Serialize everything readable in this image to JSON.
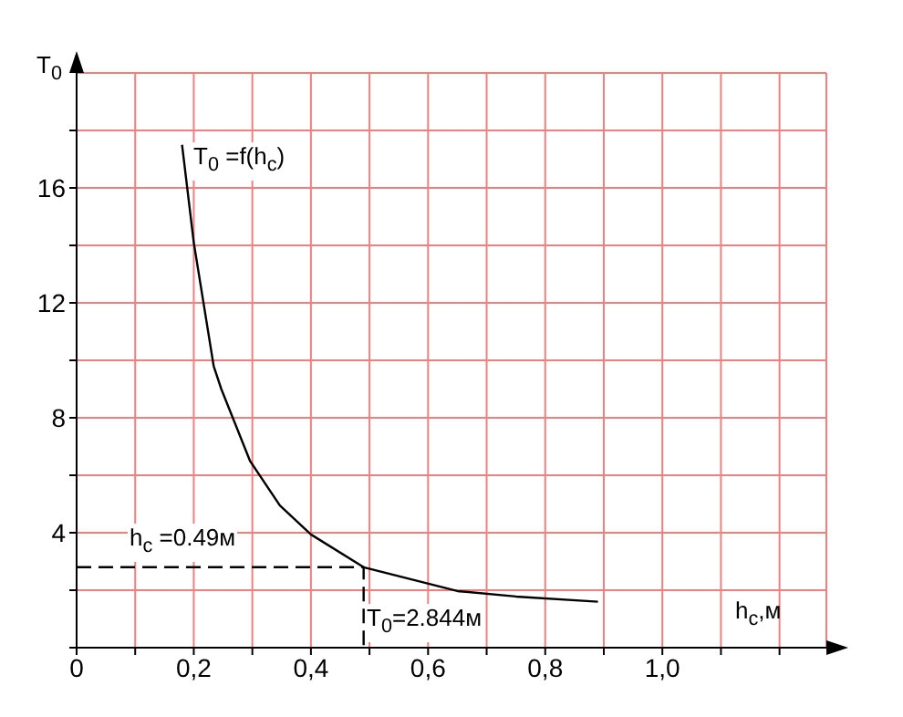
{
  "chart_data": {
    "type": "line",
    "xlabel": "h$_{c}$,м",
    "ylabel": "T$_{0}$",
    "annotations": [
      "T$_{0}$ =f(h$_{c}$)",
      "h$_{c}$ =0.49м",
      "T$_{0}$=2.844м"
    ],
    "series": [
      {
        "color": "#000000",
        "line_style": "solid",
        "x": [
          0.18,
          0.2,
          0.234,
          0.247,
          0.296,
          0.347,
          0.4,
          0.49,
          0.65,
          0.75,
          0.89
        ],
        "values": [
          17.5,
          14.1,
          9.8,
          9.0,
          6.5,
          4.95,
          3.94,
          2.8,
          1.97,
          1.78,
          1.6
        ]
      },
      {
        "color": "#000000",
        "line_style": "dashed",
        "x": [
          0,
          0.49,
          0.49
        ],
        "values": [
          2.8,
          2.8,
          0
        ]
      }
    ],
    "xlim": [
      0,
      1.28
    ],
    "ylim": [
      0,
      20
    ],
    "xticks": [
      {
        "value": 0,
        "label": "0"
      },
      {
        "value": 0.1,
        "label": null
      },
      {
        "value": 0.2,
        "label": "0,2"
      },
      {
        "value": 0.3,
        "label": null
      },
      {
        "value": 0.4,
        "label": "0,4"
      },
      {
        "value": 0.5,
        "label": null
      },
      {
        "value": 0.6,
        "label": "0,6"
      },
      {
        "value": 0.7,
        "label": null
      },
      {
        "value": 0.8,
        "label": "0,8"
      },
      {
        "value": 0.9,
        "label": null
      },
      {
        "value": 1.0,
        "label": "1,0"
      },
      {
        "value": 1.1,
        "label": null
      },
      {
        "value": 1.2,
        "label": null
      }
    ],
    "yticks": [
      {
        "value": 0,
        "label": null
      },
      {
        "value": 2,
        "label": null
      },
      {
        "value": 4,
        "label": "4"
      },
      {
        "value": 6,
        "label": null
      },
      {
        "value": 8,
        "label": "8"
      },
      {
        "value": 10,
        "label": null
      },
      {
        "value": 12,
        "label": "12"
      },
      {
        "value": 14,
        "label": null
      },
      {
        "value": 16,
        "label": "16"
      },
      {
        "value": 18,
        "label": null
      }
    ],
    "grid": true,
    "marker": "none"
  }
}
